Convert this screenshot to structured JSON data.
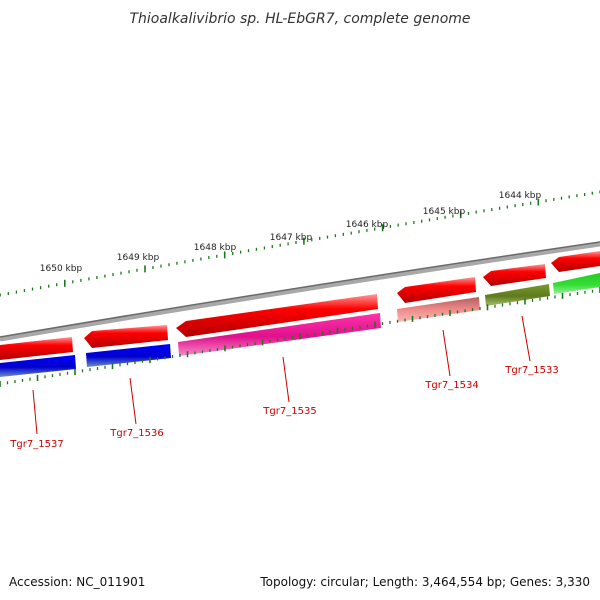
{
  "title": "Thioalkalivibrio sp. HL-EbGR7, complete genome",
  "footer": {
    "accession": "Accession: NC_011901",
    "summary": "Topology: circular; Length: 3,464,554 bp; Genes: 3,330"
  },
  "scale_labels": [
    "1650 kbp",
    "1649 kbp",
    "1648 kbp",
    "1647 kbp",
    "1646 kbp",
    "1645 kbp",
    "1644 kbp"
  ],
  "gene_labels": [
    "Tgr7_1537",
    "Tgr7_1536",
    "Tgr7_1535",
    "Tgr7_1534",
    "Tgr7_1533"
  ],
  "colors": {
    "backbone": "#8a8a8a",
    "forward_cds": "#ff0000",
    "blue_cds": "#0000ee",
    "magenta_cds": "#ee1199",
    "pink_cds": "#f08080",
    "olive_cds": "#6b8e23",
    "green_cds": "#33dd33",
    "tick": "#1a7a1a",
    "label": "#cc0000"
  }
}
